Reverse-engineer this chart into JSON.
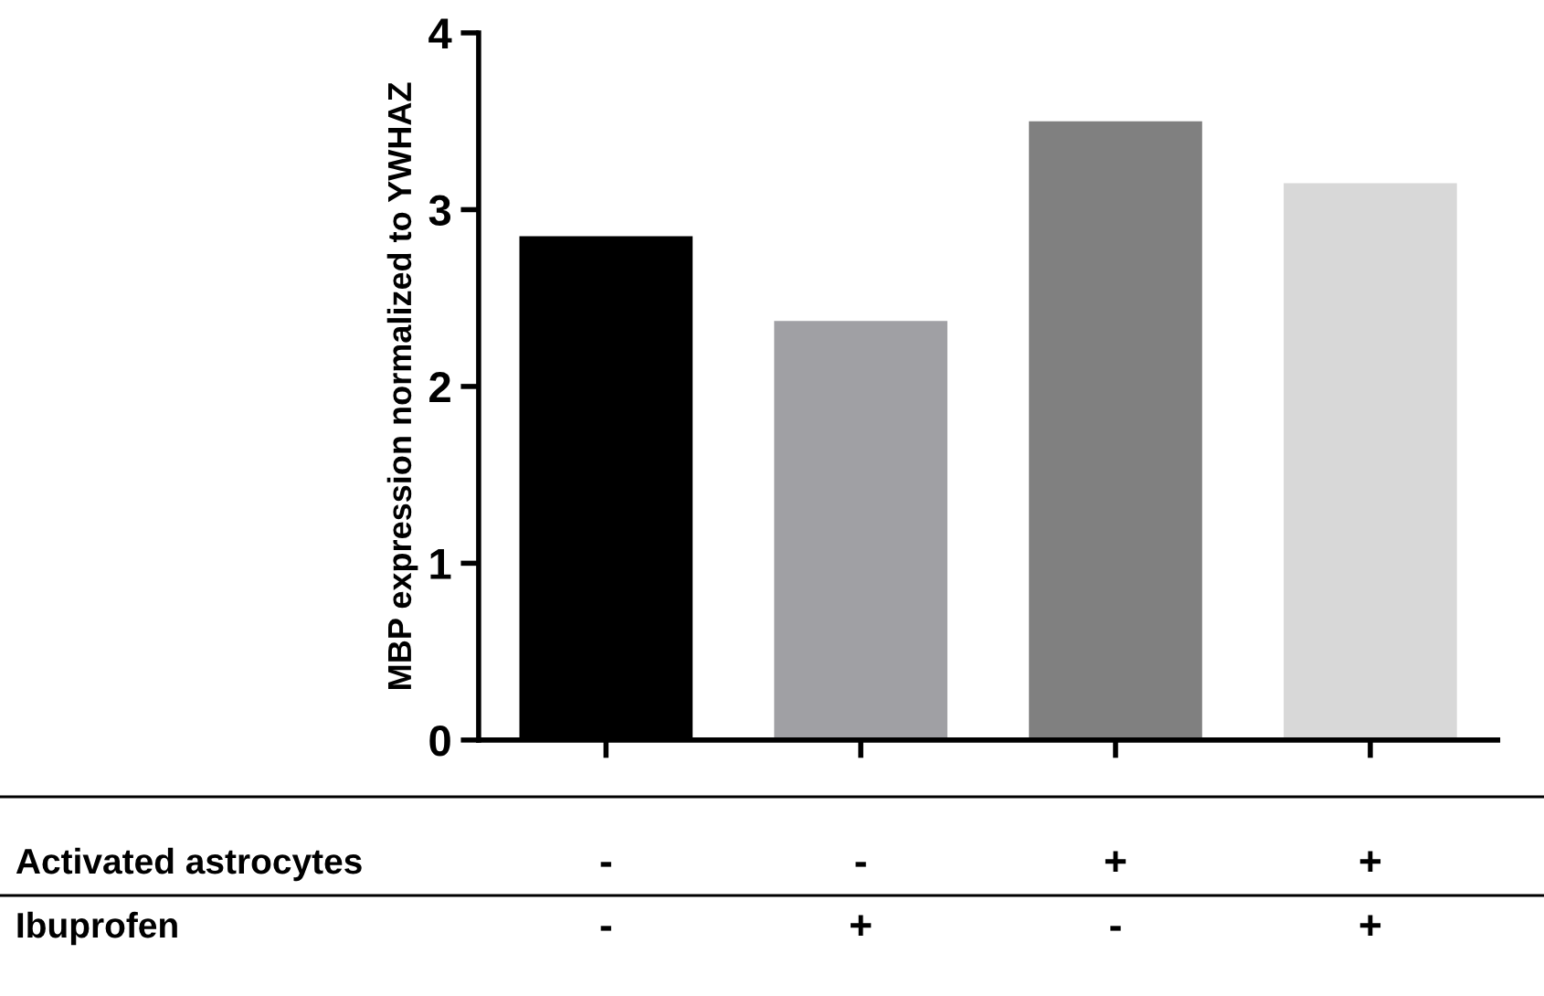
{
  "chart_data": {
    "type": "bar",
    "ylabel": "MBP expression normalized to YWHAZ",
    "categories": [
      null,
      null,
      null,
      null
    ],
    "values": [
      2.85,
      2.37,
      3.5,
      3.15
    ],
    "colors": [
      "#000000",
      "#a0a0a4",
      "#808080",
      "#d8d8d8"
    ],
    "ylim": [
      0,
      4
    ],
    "yticks": [
      0,
      1,
      2,
      3,
      4
    ],
    "grid": false,
    "tick_labels": "y",
    "annotations": [
      "Activated astrocytes",
      "-",
      "-",
      "+",
      "+",
      "Ibuprofen",
      "-",
      "+",
      "-",
      "+"
    ]
  }
}
